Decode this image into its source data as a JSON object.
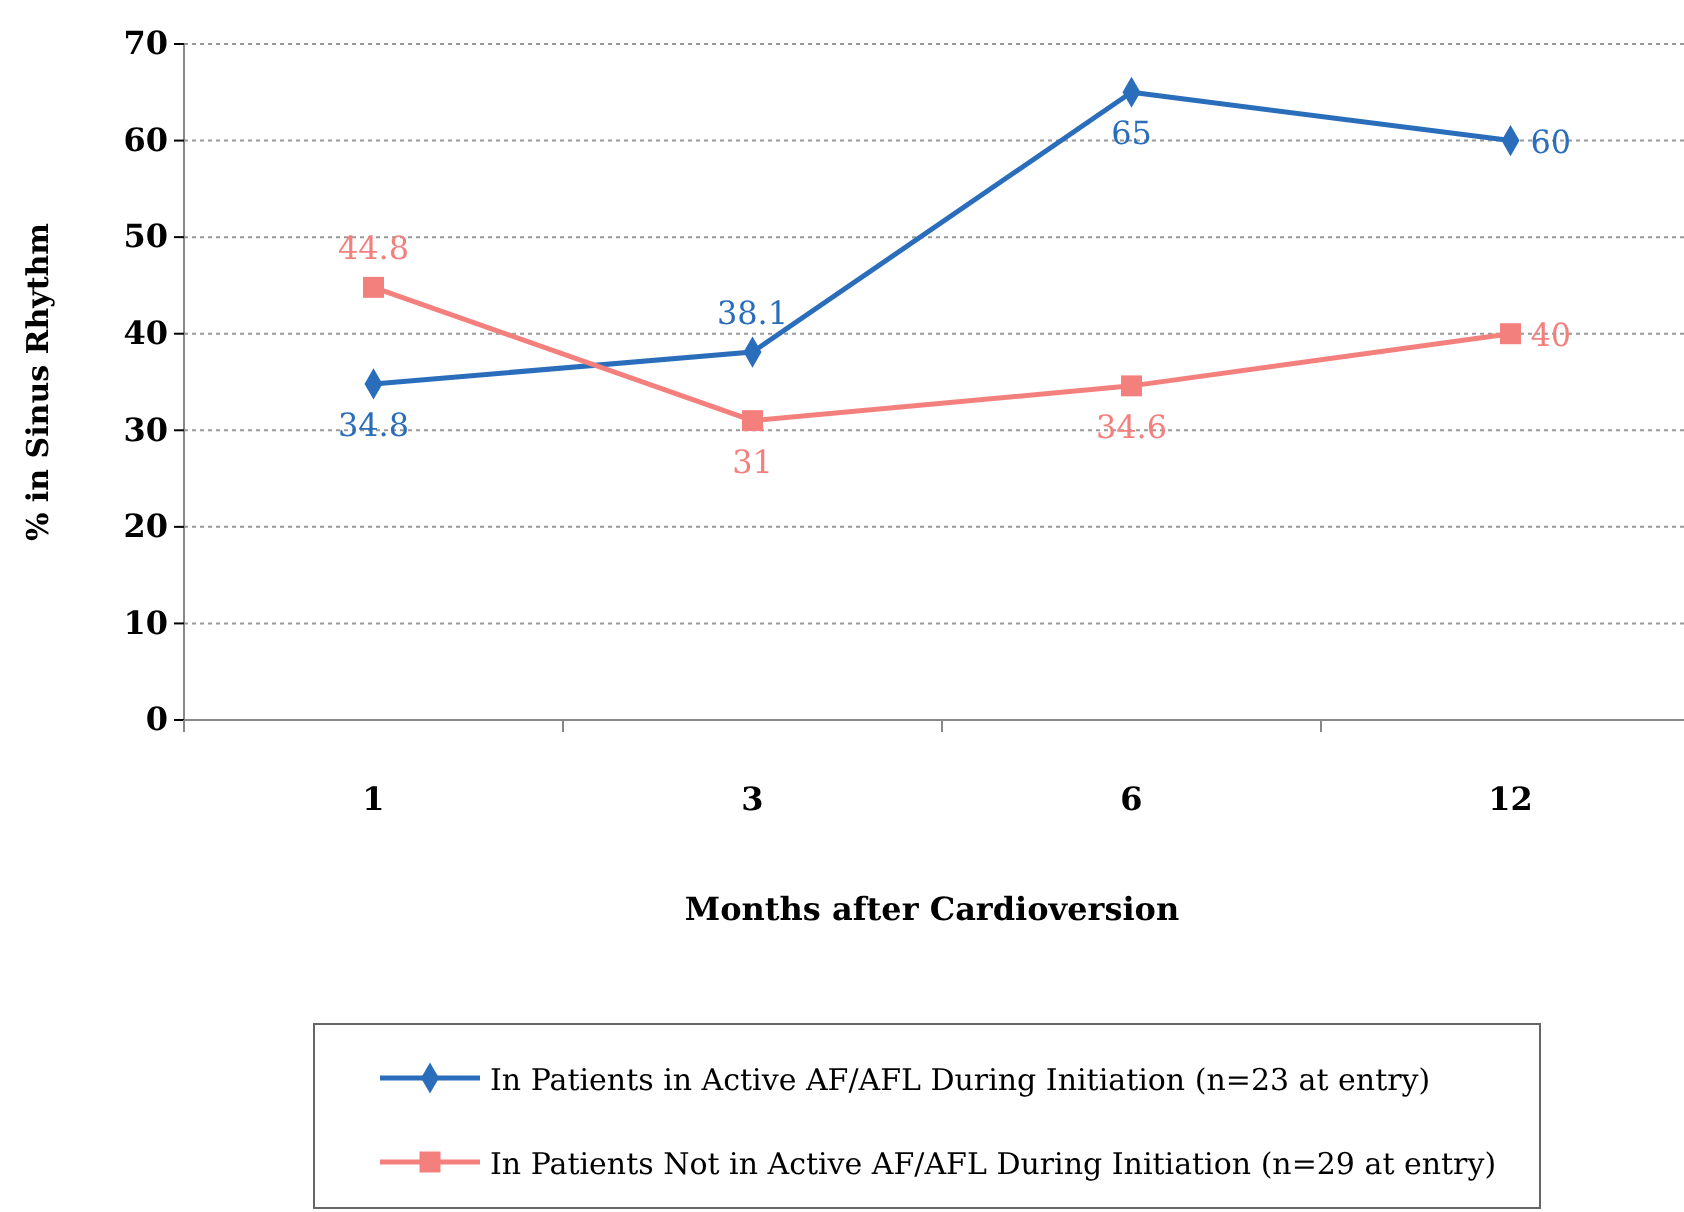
{
  "chart_data": {
    "type": "line",
    "xlabel": "Months after Cardioversion",
    "ylabel": "% in Sinus Rhythm",
    "categories": [
      "1",
      "3",
      "6",
      "12"
    ],
    "series": [
      {
        "name": "In Patients in Active AF/AFL During Initiation (n=23 at entry)",
        "color": "#2a6ebb",
        "marker": "diamond",
        "values": [
          34.8,
          38.1,
          65,
          60
        ]
      },
      {
        "name": "In Patients Not in Active AF/AFL During Initiation (n=29 at entry)",
        "color": "#f4807e",
        "marker": "square",
        "values": [
          44.8,
          31,
          34.6,
          40
        ]
      }
    ],
    "ylim": [
      0,
      70
    ],
    "yticks": [
      0,
      10,
      20,
      30,
      40,
      50,
      60,
      70
    ],
    "grid": "y",
    "legend": "bottom",
    "data_labels": true,
    "line_style": "solid"
  }
}
